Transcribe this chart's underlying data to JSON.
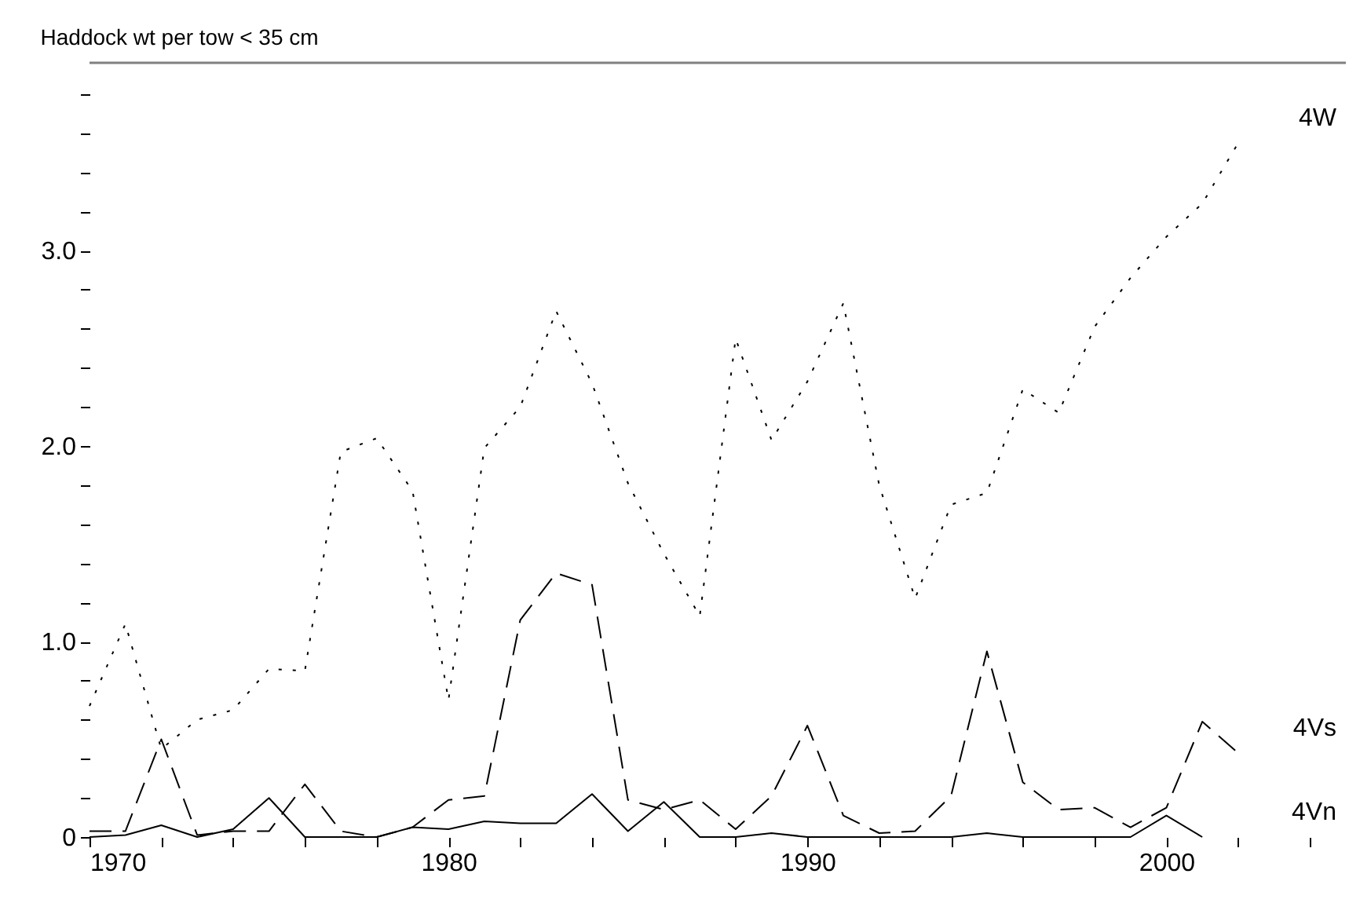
{
  "chart_data": {
    "type": "line",
    "title": "Haddock wt per tow < 35 cm",
    "x": [
      1970,
      1971,
      1972,
      1973,
      1974,
      1975,
      1976,
      1977,
      1978,
      1979,
      1980,
      1981,
      1982,
      1983,
      1984,
      1985,
      1986,
      1987,
      1988,
      1989,
      1990,
      1991,
      1992,
      1993,
      1994,
      1995,
      1996,
      1997,
      1998,
      1999,
      2000,
      2001,
      2002
    ],
    "series": [
      {
        "name": "4W",
        "color": "#000000",
        "line_style": "dotted",
        "values": [
          0.67,
          1.09,
          0.45,
          0.6,
          0.65,
          0.86,
          0.85,
          1.97,
          2.04,
          1.77,
          0.7,
          1.99,
          2.2,
          2.69,
          2.32,
          1.81,
          1.45,
          1.13,
          2.55,
          2.03,
          2.33,
          2.73,
          1.8,
          1.22,
          1.7,
          1.76,
          2.29,
          2.17,
          2.61,
          2.86,
          3.07,
          3.24,
          3.55
        ]
      },
      {
        "name": "4Vs",
        "color": "#000000",
        "line_style": "dashed",
        "values": [
          0.03,
          0.03,
          0.5,
          0.01,
          0.03,
          0.03,
          0.27,
          0.03,
          0.0,
          0.05,
          0.19,
          0.21,
          1.11,
          1.35,
          1.29,
          0.19,
          0.14,
          0.19,
          0.04,
          0.21,
          0.57,
          0.11,
          0.02,
          0.03,
          0.21,
          0.95,
          0.28,
          0.14,
          0.15,
          0.05,
          0.15,
          0.59,
          0.43
        ]
      },
      {
        "name": "4Vn",
        "color": "#000000",
        "line_style": "solid",
        "values": [
          0.0,
          0.01,
          0.06,
          0.0,
          0.04,
          0.2,
          0.0,
          0.0,
          0.0,
          0.05,
          0.04,
          0.08,
          0.07,
          0.07,
          0.22,
          0.03,
          0.18,
          0.0,
          0.0,
          0.02,
          0.0,
          0.0,
          0.0,
          0.0,
          0.0,
          0.02,
          0.0,
          0.0,
          0.0,
          0.0,
          0.11,
          0.0,
          null
        ]
      }
    ],
    "xlim": [
      1970,
      2005
    ],
    "xticks": [
      1970,
      {
        "value": 1972,
        "label": null
      },
      {
        "value": 1974,
        "label": null
      },
      {
        "value": 1976,
        "label": null
      },
      {
        "value": 1978,
        "label": null
      },
      1980,
      {
        "value": 1982,
        "label": null
      },
      {
        "value": 1984,
        "label": null
      },
      {
        "value": 1986,
        "label": null
      },
      {
        "value": 1988,
        "label": null
      },
      1990,
      {
        "value": 1992,
        "label": null
      },
      {
        "value": 1994,
        "label": null
      },
      {
        "value": 1996,
        "label": null
      },
      {
        "value": 1998,
        "label": null
      },
      2000,
      {
        "value": 2002,
        "label": null
      },
      {
        "value": 2004,
        "label": null
      }
    ],
    "ylim": [
      0,
      3.96
    ],
    "yticks": [
      0,
      {
        "value": 0.2,
        "label": null
      },
      {
        "value": 0.4,
        "label": null
      },
      {
        "value": 0.6,
        "label": null
      },
      {
        "value": 0.8,
        "label": null
      },
      {
        "value": 1.0,
        "label": "1.0"
      },
      {
        "value": 1.2,
        "label": null
      },
      {
        "value": 1.4,
        "label": null
      },
      {
        "value": 1.6,
        "label": null
      },
      {
        "value": 1.8,
        "label": null
      },
      {
        "value": 2.0,
        "label": "2.0"
      },
      {
        "value": 2.2,
        "label": null
      },
      {
        "value": 2.4,
        "label": null
      },
      {
        "value": 2.6,
        "label": null
      },
      {
        "value": 2.8,
        "label": null
      },
      {
        "value": 3.0,
        "label": "3.0"
      },
      {
        "value": 3.2,
        "label": null
      },
      {
        "value": 3.4,
        "label": null
      },
      {
        "value": 3.6,
        "label": null
      },
      {
        "value": 3.8,
        "label": null
      }
    ],
    "grid": false
  }
}
